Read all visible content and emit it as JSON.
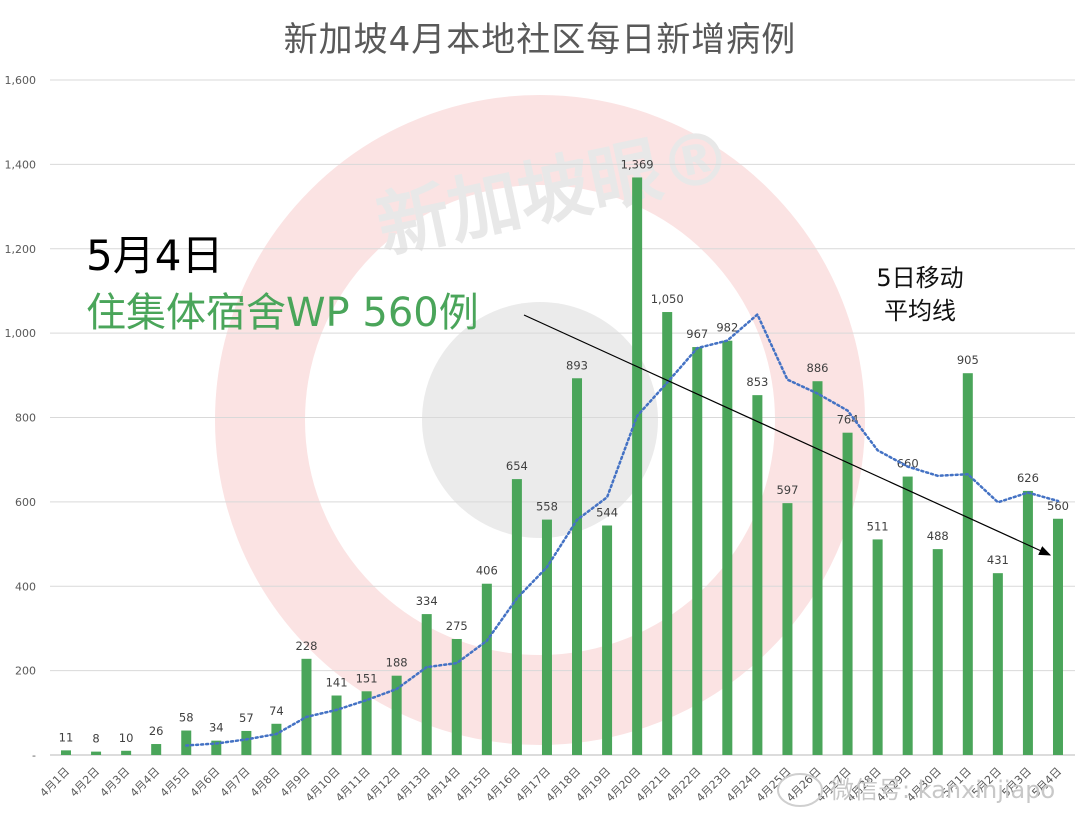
{
  "title": "新加坡4月本地社区每日新增病例",
  "annotations": {
    "date": "5月4日",
    "dormitory": "住集体宿舍WP 560例",
    "moving_average_label_line1": "5日移动",
    "moving_average_label_line2": "平均线"
  },
  "watermarks": {
    "brand": "新加坡眼®",
    "wechat": "微信号: kanxinjiapo"
  },
  "colors": {
    "bar": "#4aa55a",
    "moving_average": "#4472c4",
    "trend_arrow": "#000000",
    "gridline": "#d9d9d9",
    "axis_text": "#595959"
  },
  "chart_data": {
    "type": "bar",
    "title": "新加坡4月本地社区每日新增病例",
    "xlabel": "",
    "ylabel": "",
    "ylim": [
      0,
      1600
    ],
    "yticks": [
      "-",
      "200",
      "400",
      "600",
      "800",
      "1,000",
      "1,200",
      "1,400",
      "1,600"
    ],
    "grid": true,
    "legend": "none",
    "categories": [
      "4月1日",
      "4月2日",
      "4月3日",
      "4月4日",
      "4月5日",
      "4月6日",
      "4月7日",
      "4月8日",
      "4月9日",
      "4月10日",
      "4月11日",
      "4月12日",
      "4月13日",
      "4月14日",
      "4月15日",
      "4月16日",
      "4月17日",
      "4月18日",
      "4月19日",
      "4月20日",
      "4月21日",
      "4月22日",
      "4月23日",
      "4月24日",
      "4月25日",
      "4月26日",
      "4月27日",
      "4月28日",
      "4月29日",
      "4月30日",
      "5月1日",
      "5月2日",
      "5月3日",
      "5月4日"
    ],
    "series": [
      {
        "name": "每日新增病例",
        "type": "bar",
        "values": [
          11,
          8,
          10,
          26,
          58,
          34,
          57,
          74,
          228,
          141,
          151,
          188,
          334,
          275,
          406,
          654,
          558,
          893,
          544,
          1369,
          1050,
          967,
          982,
          853,
          597,
          886,
          764,
          511,
          660,
          488,
          905,
          431,
          626,
          560
        ],
        "labels": [
          "11",
          "8",
          "10",
          "26",
          "58",
          "34",
          "57",
          "74",
          "228",
          "141",
          "151",
          "188",
          "334",
          "275",
          "406",
          "654",
          "558",
          "893",
          "544",
          "1,369",
          "1,050",
          "967",
          "982",
          "853",
          "597",
          "886",
          "764",
          "511",
          "660",
          "488",
          "905",
          "431",
          "626",
          "560"
        ]
      },
      {
        "name": "5日移动平均线",
        "type": "line",
        "style": "dotted",
        "start_index": 4,
        "values": [
          22.6,
          27.2,
          37,
          49.8,
          90.2,
          106.8,
          130.2,
          156.4,
          208.4,
          217.8,
          270.8,
          371.4,
          445.4,
          557.2,
          611,
          803.6,
          882.8,
          964.6,
          982.4,
          1044.2,
          889.8,
          857,
          816.4,
          722.2,
          683.6,
          661.8,
          665.6,
          599,
          622,
          602
        ]
      }
    ],
    "annotations": [
      {
        "text": "5月4日 住集体宿舍WP 560例",
        "position": "upper-left"
      },
      {
        "text": "5日移动平均线",
        "position": "upper-right"
      },
      {
        "text": "downward trend arrow",
        "from": "4月17日 ~1000",
        "to": "5月4日 ~480"
      }
    ]
  }
}
